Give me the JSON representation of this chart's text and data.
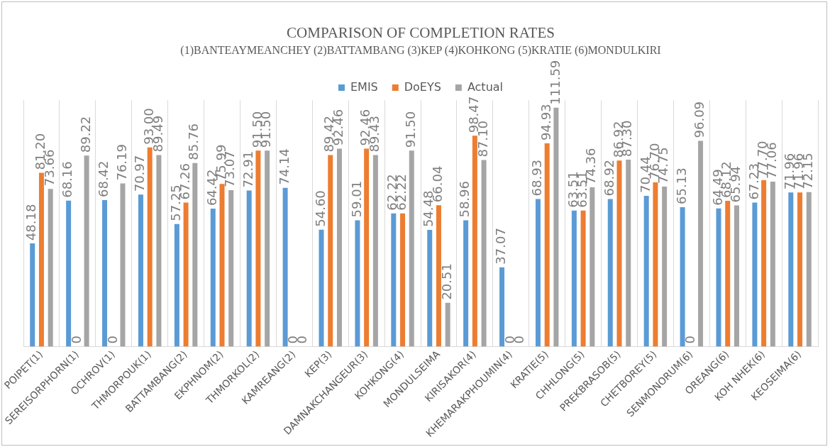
{
  "chart_data": {
    "type": "bar",
    "title": "COMPARISON OF COMPLETION RATES",
    "subtitle": "(1)BANTEAYMEANCHEY (2)BATTAMBANG (3)KEP (4)KOHKONG (5)KRATIE (6)MONDULKIRI",
    "categories": [
      "POIPET(1)",
      "SEREISORPHORN(1)",
      "OCHROV(1)",
      "THMORPOUK(1)",
      "BATTAMBANG(2)",
      "EKPHNOM(2)",
      "THMORKOL(2)",
      "KAMREANG(2)",
      "KEP(3)",
      "DAMNAKCHANGEUR(3)",
      "KOHKONG(4)",
      "MONDULSEIMA",
      "KIRISAKOR(4)",
      "KHEMARAKPHOUMIN(4)",
      "KRATIE(5)",
      "CHHLONG(5)",
      "PREKBRASOB(5)",
      "CHETBOREY(5)",
      "SENMONORUM(6)",
      "OREANG(6)",
      "KOH NHEK(6)",
      "KEOSEIMA(6)"
    ],
    "series": [
      {
        "name": "EMIS",
        "color": "#5b9bd5",
        "values": [
          48.18,
          68.16,
          68.42,
          70.97,
          57.25,
          64.42,
          72.91,
          74.14,
          54.6,
          59.01,
          62.22,
          54.48,
          58.96,
          37.07,
          68.93,
          63.51,
          68.92,
          70.44,
          65.13,
          64.49,
          67.23,
          71.96
        ],
        "value_labels": [
          "48.18",
          "68.16",
          "68.42",
          "70.97",
          "57.25",
          "64.42",
          "72.91",
          "74.14",
          "54.60",
          "59.01",
          "62.22",
          "54.48",
          "58.96",
          "37.07",
          "68.93",
          "63.51",
          "68.92",
          "70.44",
          "65.13",
          "64.49",
          "67.23",
          "71.96"
        ]
      },
      {
        "name": "DoEYS",
        "color": "#ed7d31",
        "values": [
          81.2,
          0,
          0,
          93,
          67.26,
          75.99,
          91.5,
          0,
          89.42,
          92.46,
          62.22,
          66.04,
          98.47,
          0,
          94.93,
          63.51,
          86.92,
          76.7,
          0,
          68.12,
          77.7,
          71.96
        ],
        "value_labels": [
          "81.20",
          "0",
          "0",
          "93.00",
          "67.26",
          "75.99",
          "91.50",
          "0",
          "89.42",
          "92.46",
          "62.22",
          "66.04",
          "98.47",
          "0",
          "94.93",
          "63.51",
          "86.92",
          "76.70",
          "0",
          "68.12",
          "77.70",
          "71.96"
        ]
      },
      {
        "name": "Actual",
        "color": "#a5a5a5",
        "values": [
          73.66,
          89.22,
          76.19,
          89.49,
          85.76,
          73.07,
          91.5,
          0,
          92.46,
          89.43,
          91.5,
          20.51,
          87.1,
          0,
          111.59,
          74.36,
          87.3,
          74.75,
          96.09,
          65.94,
          77.06,
          72.15
        ],
        "value_labels": [
          "73.66",
          "89.22",
          "76.19",
          "89.49",
          "85.76",
          "73.07",
          "91.50",
          "0",
          "92.46",
          "89.43",
          "91.50",
          "20.51",
          "87.10",
          "0",
          "111.59",
          "74.36",
          "87.30",
          "74.75",
          "96.09",
          "65.94",
          "77.06",
          "72.15"
        ]
      }
    ],
    "ylim": [
      0,
      115
    ],
    "tick_labels": "x",
    "grid": "x",
    "legend": "top"
  }
}
